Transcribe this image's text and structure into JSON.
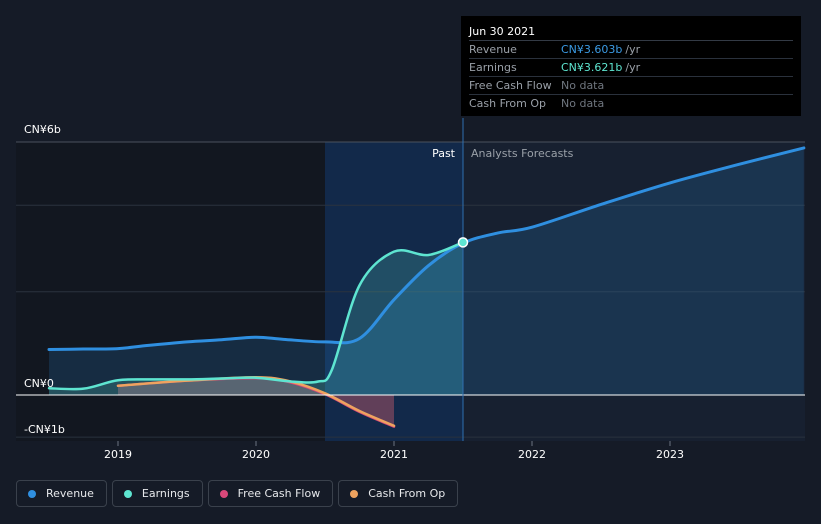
{
  "tooltip": {
    "date": "Jun 30 2021",
    "rows": [
      {
        "label": "Revenue",
        "value": "CN¥3.603b",
        "unit": "/yr",
        "color": "#3b9be5"
      },
      {
        "label": "Earnings",
        "value": "CN¥3.621b",
        "unit": "/yr",
        "color": "#5ee5d1"
      },
      {
        "label": "Free Cash Flow",
        "value": "No data",
        "unit": "",
        "color": "#6f767f"
      },
      {
        "label": "Cash From Op",
        "value": "No data",
        "unit": "",
        "color": "#6f767f"
      }
    ]
  },
  "legend": [
    {
      "label": "Revenue",
      "color": "#2f8fe0"
    },
    {
      "label": "Earnings",
      "color": "#5ee5d1"
    },
    {
      "label": "Free Cash Flow",
      "color": "#d9487a"
    },
    {
      "label": "Cash From Op",
      "color": "#eea35f"
    }
  ],
  "chart_data": {
    "type": "line",
    "title": "",
    "xlabel": "",
    "ylabel": "",
    "y_tick_labels": [
      "CN¥6b",
      "CN¥0",
      "-CN¥1b"
    ],
    "x_tick_labels": [
      "2019",
      "2020",
      "2021",
      "2022",
      "2023"
    ],
    "x_ticks": [
      2019,
      2020,
      2021,
      2022,
      2023
    ],
    "xlim": [
      2018.5,
      2023.97
    ],
    "ylim": [
      -1,
      6
    ],
    "past_label": "Past",
    "forecast_label": "Analysts Forecasts",
    "past_region_start": 2020.5,
    "forecast_start": 2021.5,
    "series": [
      {
        "name": "Revenue",
        "color": "#2f8fe0",
        "points": [
          [
            2018.5,
            1.08
          ],
          [
            2018.75,
            1.09
          ],
          [
            2019.0,
            1.1
          ],
          [
            2019.2,
            1.17
          ],
          [
            2019.5,
            1.26
          ],
          [
            2019.75,
            1.31
          ],
          [
            2020.0,
            1.37
          ],
          [
            2020.2,
            1.32
          ],
          [
            2020.5,
            1.26
          ],
          [
            2020.75,
            1.34
          ],
          [
            2021.0,
            2.26
          ],
          [
            2021.25,
            3.07
          ],
          [
            2021.5,
            3.6
          ],
          [
            2021.75,
            3.84
          ],
          [
            2022.0,
            3.98
          ],
          [
            2022.5,
            4.52
          ],
          [
            2023.0,
            5.03
          ],
          [
            2023.5,
            5.47
          ],
          [
            2023.97,
            5.86
          ]
        ]
      },
      {
        "name": "Earnings",
        "color": "#5ee5d1",
        "points": [
          [
            2018.5,
            0.16
          ],
          [
            2018.75,
            0.15
          ],
          [
            2019.0,
            0.35
          ],
          [
            2019.25,
            0.37
          ],
          [
            2019.5,
            0.37
          ],
          [
            2019.75,
            0.39
          ],
          [
            2020.0,
            0.41
          ],
          [
            2020.25,
            0.32
          ],
          [
            2020.45,
            0.32
          ],
          [
            2020.55,
            0.6
          ],
          [
            2020.75,
            2.6
          ],
          [
            2021.0,
            3.4
          ],
          [
            2021.25,
            3.32
          ],
          [
            2021.5,
            3.62
          ]
        ]
      },
      {
        "name": "Free Cash Flow",
        "color": "#d9487a",
        "points": [
          [
            2019.0,
            0.22
          ],
          [
            2019.5,
            0.34
          ],
          [
            2020.0,
            0.4
          ],
          [
            2020.25,
            0.3
          ],
          [
            2020.5,
            0.02
          ],
          [
            2020.75,
            -0.4
          ],
          [
            2021.0,
            -0.75
          ]
        ]
      },
      {
        "name": "Cash From Op",
        "color": "#eea35f",
        "points": [
          [
            2019.0,
            0.22
          ],
          [
            2019.5,
            0.34
          ],
          [
            2020.0,
            0.42
          ],
          [
            2020.25,
            0.32
          ],
          [
            2020.5,
            0.04
          ],
          [
            2020.75,
            -0.38
          ],
          [
            2021.0,
            -0.73
          ]
        ]
      }
    ],
    "highlight_point": {
      "series": "Earnings",
      "x": 2021.5,
      "y": 3.62
    }
  }
}
